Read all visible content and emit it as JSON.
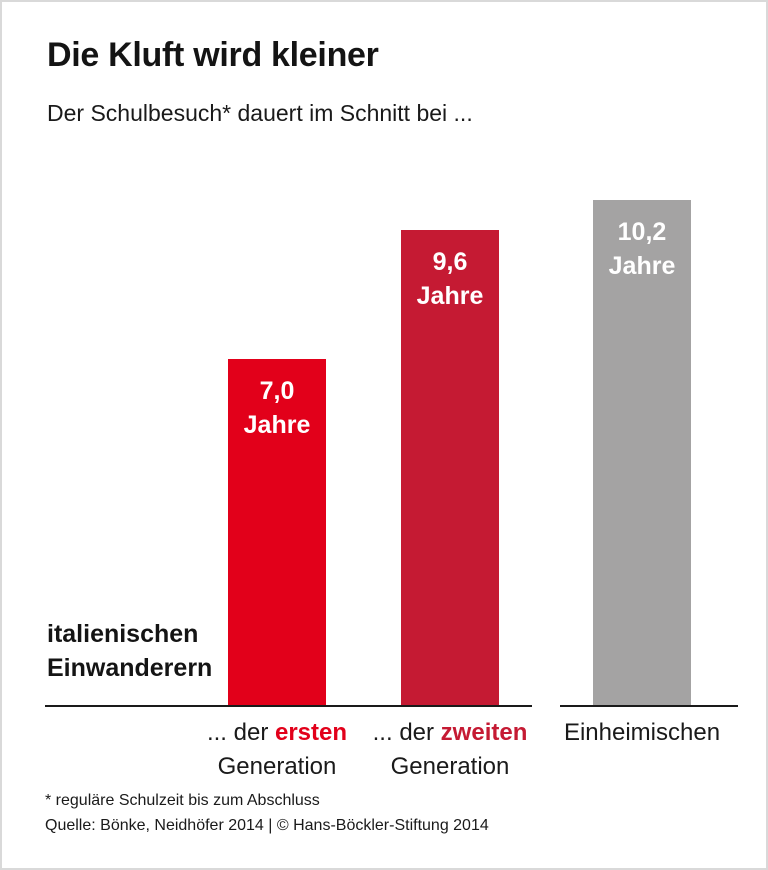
{
  "title": "Die Kluft wird kleiner",
  "subtitle": "Der Schulbesuch* dauert im Schnitt bei ...",
  "group_label": {
    "line1": "italienischen",
    "line2": "Einwanderern"
  },
  "footnote": "* reguläre Schulzeit bis zum Abschluss",
  "source": "Quelle: Bönke, Neidhöfer 2014 | © Hans-Böckler-Stiftung 2014",
  "colors": {
    "bright_red": "#e2001a",
    "dark_red": "#c51a33",
    "gray": "#a4a3a3",
    "text": "#1a1a1a"
  },
  "chart_data": {
    "type": "bar",
    "title": "Die Kluft wird kleiner",
    "subtitle": "Der Schulbesuch* dauert im Schnitt bei ...",
    "unit": "Jahre",
    "categories": [
      "... der ersten Generation",
      "... der zweiten Generation",
      "Einheimischen"
    ],
    "values": [
      7.0,
      9.6,
      10.2
    ],
    "ylim": [
      0,
      10.5
    ],
    "grid": false,
    "legend": false,
    "bars": [
      {
        "value": 7.0,
        "value_label_lines": [
          "7,0",
          "Jahre"
        ],
        "color": "#e2001a",
        "label_line1": [
          {
            "text": "... der "
          },
          {
            "text": "ersten",
            "color": "#e2001a",
            "bold": true
          }
        ],
        "label_line2": "Generation"
      },
      {
        "value": 9.6,
        "value_label_lines": [
          "9,6",
          "Jahre"
        ],
        "color": "#c51a33",
        "label_line1": [
          {
            "text": "... der "
          },
          {
            "text": "zweiten",
            "color": "#c51a33",
            "bold": true
          }
        ],
        "label_line2": "Generation"
      },
      {
        "value": 10.2,
        "value_label_lines": [
          "10,2",
          "Jahre"
        ],
        "color": "#a4a3a3",
        "label_line1": [
          {
            "text": "Einheimischen"
          }
        ],
        "label_line2": ""
      }
    ]
  }
}
